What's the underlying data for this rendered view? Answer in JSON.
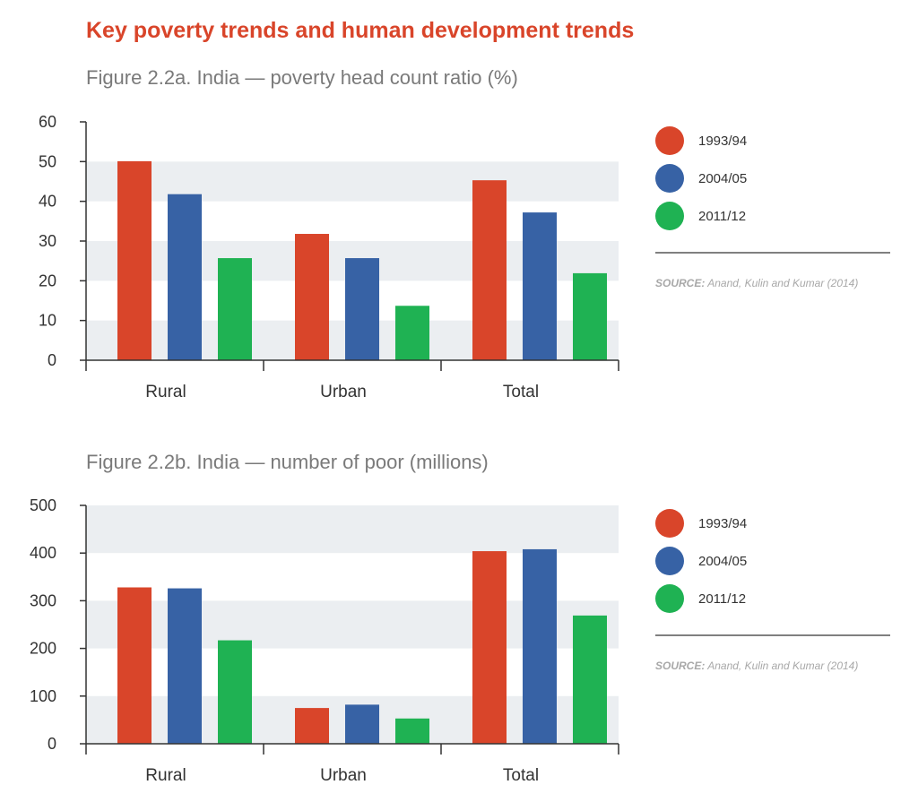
{
  "heading": "Key poverty trends and human development trends",
  "colors": {
    "s1993": "#d9452a",
    "s2004": "#3762a5",
    "s2011": "#1fb253",
    "band": "#ebeef1",
    "axis": "#333333",
    "heading": "#d9452a"
  },
  "figures": [
    {
      "title": "Figure 2.2a. India — poverty head count ratio (%)",
      "legend": [
        "1993/94",
        "2004/05",
        "2011/12"
      ],
      "source_key": "SOURCE:",
      "source_text": "Anand, Kulin and Kumar (2014)"
    },
    {
      "title": "Figure 2.2b. India — number of poor (millions)",
      "legend": [
        "1993/94",
        "2004/05",
        "2011/12"
      ],
      "source_key": "SOURCE:",
      "source_text": "Anand, Kulin and Kumar (2014)"
    }
  ],
  "chart_data": [
    {
      "type": "bar",
      "title": "Figure 2.2a. India — poverty head count ratio (%)",
      "categories": [
        "Rural",
        "Urban",
        "Total"
      ],
      "series": [
        {
          "name": "1993/94",
          "values": [
            50.1,
            31.8,
            45.3
          ]
        },
        {
          "name": "2004/05",
          "values": [
            41.8,
            25.7,
            37.2
          ]
        },
        {
          "name": "2011/12",
          "values": [
            25.7,
            13.7,
            21.9
          ]
        }
      ],
      "yticks": [
        0,
        10,
        20,
        30,
        40,
        50,
        60
      ],
      "ylim": [
        0,
        60
      ],
      "xlabel": "",
      "ylabel": ""
    },
    {
      "type": "bar",
      "title": "Figure 2.2b. India — number of poor (millions)",
      "categories": [
        "Rural",
        "Urban",
        "Total"
      ],
      "series": [
        {
          "name": "1993/94",
          "values": [
            328,
            75,
            404
          ]
        },
        {
          "name": "2004/05",
          "values": [
            326,
            82,
            408
          ]
        },
        {
          "name": "2011/12",
          "values": [
            217,
            53,
            269
          ]
        }
      ],
      "yticks": [
        0,
        100,
        200,
        300,
        400,
        500
      ],
      "ylim": [
        0,
        500
      ],
      "xlabel": "",
      "ylabel": ""
    }
  ]
}
